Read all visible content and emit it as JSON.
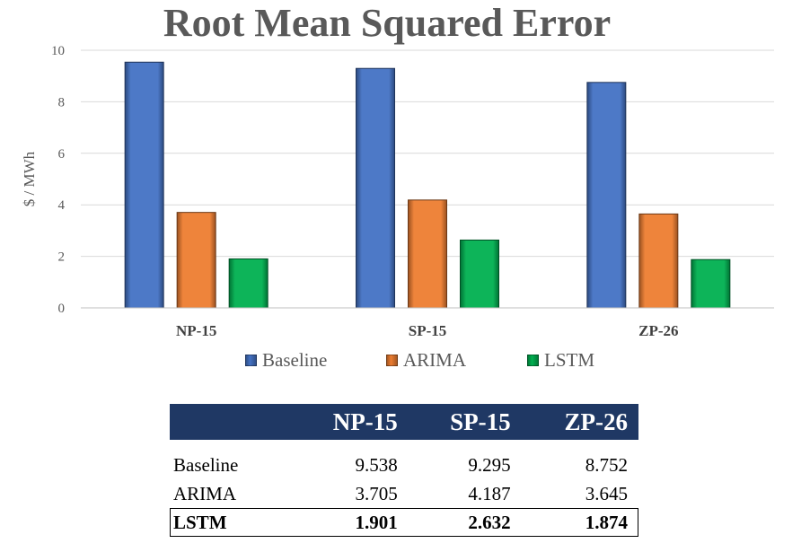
{
  "chart_data": {
    "type": "bar",
    "title": "Root Mean Squared Error",
    "ylabel": "$ / MWh",
    "xlabel": "",
    "ylim": [
      0,
      10
    ],
    "yticks": [
      0,
      2,
      4,
      6,
      8,
      10
    ],
    "grid": true,
    "legend_position": "bottom",
    "categories": [
      "NP-15",
      "SP-15",
      "ZP-26"
    ],
    "series": [
      {
        "name": "Baseline",
        "values": [
          9.538,
          9.295,
          8.752
        ],
        "color": "#4472c4"
      },
      {
        "name": "ARIMA",
        "values": [
          3.705,
          4.187,
          3.645
        ],
        "color": "#ed7d31"
      },
      {
        "name": "LSTM",
        "values": [
          1.901,
          2.632,
          1.874
        ],
        "color": "#00b050"
      }
    ]
  },
  "table": {
    "header": [
      "",
      "NP-15",
      "SP-15",
      "ZP-26"
    ],
    "header_color": "#1f3864",
    "rows": [
      {
        "label": "Baseline",
        "values": [
          "9.538",
          "9.295",
          "8.752"
        ]
      },
      {
        "label": "ARIMA",
        "values": [
          "3.705",
          "4.187",
          "3.645"
        ]
      },
      {
        "label": "LSTM",
        "values": [
          "1.901",
          "2.632",
          "1.874"
        ],
        "highlighted": true
      }
    ]
  }
}
